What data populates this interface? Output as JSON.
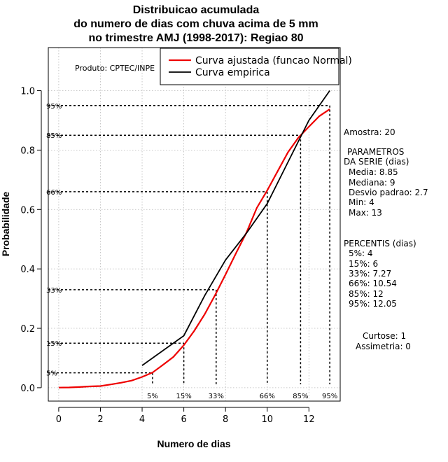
{
  "title_lines": [
    "Distribuicao acumulada",
    "do numero de dias com chuva acima de 5 mm",
    "no trimestre AMJ (1998-2017): Regiao 80"
  ],
  "product_label": "Produto: CPTEC/INPE",
  "legend": {
    "fitted": "Curva ajustada (funcao Normal)",
    "empirical": "Curva empirica"
  },
  "colors": {
    "fitted": "#ee0000",
    "empirical": "#000000",
    "grid": "#b8b8b8"
  },
  "side_panel": {
    "sample": "Amostra: 20",
    "params_title_1": "PARAMETROS",
    "params_title_2": "DA SERIE (dias)",
    "media": "Media: 8.85",
    "mediana": "Mediana: 9",
    "desvio": "Desvio padrao: 2.7",
    "min": "Min: 4",
    "max": "Max: 13",
    "percentis_title": "PERCENTIS (dias)",
    "p5": "5%: 4",
    "p15": "15%: 6",
    "p33": "33%: 7.27",
    "p66": "66%: 10.54",
    "p85": "85%: 12",
    "p95": "95%: 12.05",
    "curtose": "Curtose: 1",
    "assimetria": "Assimetria: 0"
  },
  "chart_data": {
    "type": "line",
    "title": "Distribuicao acumulada do numero de dias com chuva acima de 5 mm no trimestre AMJ (1998-2017): Regiao 80",
    "xlabel": "Numero de dias",
    "ylabel": "Probabilidade",
    "xlim": [
      -0.5,
      13.5
    ],
    "ylim": [
      -0.045,
      1.145
    ],
    "x_ticks": [
      0,
      2,
      4,
      6,
      8,
      10,
      12
    ],
    "y_ticks": [
      0.0,
      0.2,
      0.4,
      0.6,
      0.8,
      1.0
    ],
    "x_tick_labels": [
      "0",
      "2",
      "4",
      "6",
      "8",
      "10",
      "12"
    ],
    "y_tick_labels": [
      "0.0",
      "0.2",
      "0.4",
      "0.6",
      "0.8",
      "1.0"
    ],
    "grid": true,
    "series": [
      {
        "name": "Curva ajustada (funcao Normal)",
        "x": [
          0,
          0.5,
          1,
          1.5,
          2,
          2.5,
          3,
          3.5,
          4,
          4.5,
          5,
          5.5,
          6,
          6.5,
          7,
          7.5,
          8,
          8.5,
          9,
          9.5,
          10,
          10.5,
          11,
          11.5,
          12,
          12.5,
          13
        ],
        "y": [
          0.0005,
          0.001,
          0.0023,
          0.0044,
          0.0057,
          0.0112,
          0.0169,
          0.024,
          0.0362,
          0.0512,
          0.077,
          0.1037,
          0.1432,
          0.1917,
          0.2473,
          0.3121,
          0.3813,
          0.4526,
          0.522,
          0.6053,
          0.6646,
          0.7286,
          0.7933,
          0.8421,
          0.8787,
          0.9142,
          0.9378
        ]
      },
      {
        "name": "Curva empirica",
        "x": [
          4,
          6,
          7,
          8,
          9,
          10,
          11,
          12,
          13
        ],
        "y": [
          0.075,
          0.175,
          0.31,
          0.43,
          0.52,
          0.62,
          0.76,
          0.9,
          1.0
        ]
      }
    ],
    "percentiles": [
      {
        "label": "5%",
        "prob": 0.05,
        "days": 4.5
      },
      {
        "label": "15%",
        "prob": 0.15,
        "days": 6.0
      },
      {
        "label": "33%",
        "prob": 0.33,
        "days": 7.55
      },
      {
        "label": "66%",
        "prob": 0.66,
        "days": 10.0
      },
      {
        "label": "85%",
        "prob": 0.85,
        "days": 11.6
      },
      {
        "label": "95%",
        "prob": 0.95,
        "days": 13.0
      }
    ]
  }
}
